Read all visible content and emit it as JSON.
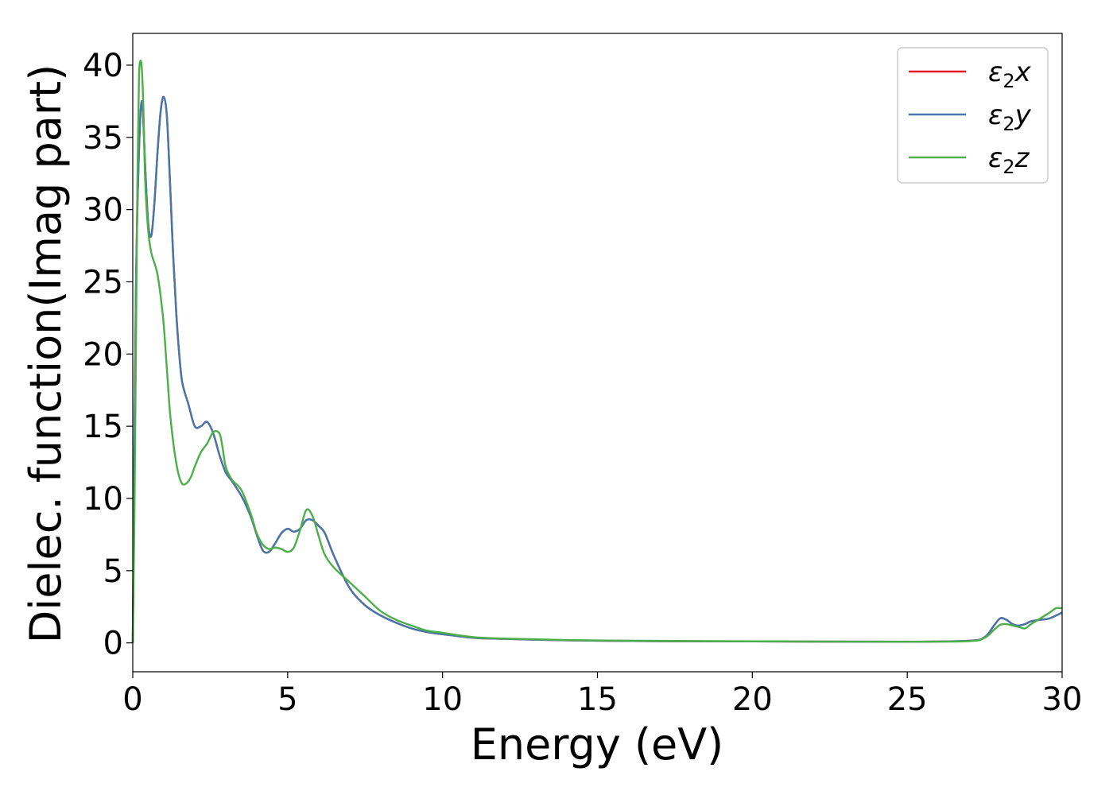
{
  "chart_data": {
    "type": "line",
    "title": "",
    "xlabel": "Energy (eV)",
    "ylabel": "Dielec. function(Imag part)",
    "xlim": [
      0,
      30
    ],
    "ylim": [
      -2,
      42.2
    ],
    "xticks": [
      0,
      5,
      10,
      15,
      20,
      25,
      30
    ],
    "yticks": [
      0,
      5,
      10,
      15,
      20,
      25,
      30,
      35,
      40
    ],
    "grid": false,
    "legend_position": "top-right",
    "series": [
      {
        "name": "ε₂x",
        "legend_main": "ε",
        "legend_sub": "2",
        "legend_suffix": "x",
        "color": "#e41a1c",
        "x": [
          0,
          0.1,
          0.2,
          0.3,
          0.4,
          0.5,
          0.6,
          0.7,
          0.8,
          0.9,
          1.0,
          1.1,
          1.2,
          1.3,
          1.4,
          1.5,
          1.6,
          1.8,
          2.0,
          2.2,
          2.4,
          2.6,
          2.8,
          3.0,
          3.2,
          3.5,
          3.8,
          4.0,
          4.2,
          4.4,
          4.6,
          4.8,
          5.0,
          5.2,
          5.4,
          5.6,
          5.8,
          6.0,
          6.2,
          6.5,
          7.0,
          7.5,
          8.0,
          8.5,
          9.0,
          9.5,
          10.0,
          11.0,
          12.0,
          13.0,
          14.0,
          15.0,
          17.0,
          20.0,
          25.0,
          27.0,
          27.5,
          27.8,
          28.0,
          28.2,
          28.4,
          28.6,
          28.8,
          29.0,
          29.3,
          29.6,
          30.0
        ],
        "y": [
          0,
          24.0,
          34.0,
          37.5,
          33.0,
          29.0,
          28.2,
          30.5,
          34.0,
          36.8,
          37.8,
          36.5,
          32.0,
          27.0,
          23.0,
          20.0,
          18.0,
          16.5,
          15.0,
          15.0,
          15.3,
          14.5,
          13.0,
          11.8,
          11.2,
          10.2,
          8.8,
          7.5,
          6.4,
          6.3,
          6.9,
          7.6,
          7.9,
          7.7,
          7.9,
          8.5,
          8.5,
          8.1,
          7.6,
          6.0,
          3.8,
          2.6,
          1.9,
          1.4,
          1.0,
          0.75,
          0.6,
          0.35,
          0.28,
          0.22,
          0.18,
          0.15,
          0.12,
          0.1,
          0.08,
          0.15,
          0.4,
          1.2,
          1.7,
          1.6,
          1.3,
          1.2,
          1.3,
          1.5,
          1.6,
          1.7,
          2.1
        ]
      },
      {
        "name": "ε₂y",
        "legend_main": "ε",
        "legend_sub": "2",
        "legend_suffix": "y",
        "color": "#4477aa",
        "x": [
          0,
          0.1,
          0.2,
          0.3,
          0.4,
          0.5,
          0.6,
          0.7,
          0.8,
          0.9,
          1.0,
          1.1,
          1.2,
          1.3,
          1.4,
          1.5,
          1.6,
          1.8,
          2.0,
          2.2,
          2.4,
          2.6,
          2.8,
          3.0,
          3.2,
          3.5,
          3.8,
          4.0,
          4.2,
          4.4,
          4.6,
          4.8,
          5.0,
          5.2,
          5.4,
          5.6,
          5.8,
          6.0,
          6.2,
          6.5,
          7.0,
          7.5,
          8.0,
          8.5,
          9.0,
          9.5,
          10.0,
          11.0,
          12.0,
          13.0,
          14.0,
          15.0,
          17.0,
          20.0,
          25.0,
          27.0,
          27.5,
          27.8,
          28.0,
          28.2,
          28.4,
          28.6,
          28.8,
          29.0,
          29.3,
          29.6,
          30.0
        ],
        "y": [
          0,
          24.0,
          34.0,
          37.5,
          33.0,
          29.0,
          28.2,
          30.5,
          34.0,
          36.8,
          37.8,
          36.5,
          32.0,
          27.0,
          23.0,
          20.0,
          18.0,
          16.5,
          15.0,
          15.0,
          15.3,
          14.5,
          13.0,
          11.8,
          11.2,
          10.2,
          8.8,
          7.5,
          6.4,
          6.3,
          6.9,
          7.6,
          7.9,
          7.7,
          7.9,
          8.5,
          8.5,
          8.1,
          7.6,
          6.0,
          3.8,
          2.6,
          1.9,
          1.4,
          1.0,
          0.75,
          0.6,
          0.35,
          0.28,
          0.22,
          0.18,
          0.15,
          0.12,
          0.1,
          0.08,
          0.15,
          0.4,
          1.2,
          1.7,
          1.6,
          1.3,
          1.2,
          1.3,
          1.5,
          1.6,
          1.7,
          2.1
        ]
      },
      {
        "name": "ε₂z",
        "legend_main": "ε",
        "legend_sub": "2",
        "legend_suffix": "z",
        "color": "#4daf4a",
        "x": [
          0,
          0.05,
          0.1,
          0.15,
          0.2,
          0.25,
          0.3,
          0.35,
          0.4,
          0.5,
          0.6,
          0.7,
          0.8,
          0.9,
          1.0,
          1.1,
          1.2,
          1.3,
          1.4,
          1.5,
          1.6,
          1.7,
          1.8,
          1.9,
          2.0,
          2.2,
          2.4,
          2.6,
          2.8,
          2.9,
          3.0,
          3.2,
          3.5,
          3.8,
          4.0,
          4.2,
          4.4,
          4.6,
          4.8,
          5.0,
          5.2,
          5.4,
          5.6,
          5.8,
          6.0,
          6.2,
          6.5,
          7.0,
          7.5,
          8.0,
          8.5,
          9.0,
          9.5,
          10.0,
          11.0,
          12.0,
          13.0,
          14.0,
          15.0,
          17.0,
          20.0,
          25.0,
          27.0,
          27.5,
          27.8,
          28.0,
          28.2,
          28.4,
          28.6,
          28.8,
          29.0,
          29.3,
          29.6,
          29.8,
          30.0
        ],
        "y": [
          0,
          8,
          20,
          32,
          39.0,
          40.3,
          39.5,
          36.5,
          32.0,
          28.5,
          27.0,
          26.3,
          25.5,
          24.0,
          22.0,
          19.0,
          16.0,
          14.0,
          12.5,
          11.5,
          11.0,
          11.0,
          11.2,
          11.6,
          12.2,
          13.2,
          13.8,
          14.6,
          14.5,
          13.5,
          12.2,
          11.3,
          10.6,
          9.0,
          7.6,
          6.8,
          6.5,
          6.6,
          6.5,
          6.3,
          6.6,
          7.8,
          9.2,
          8.8,
          7.4,
          6.1,
          5.2,
          4.2,
          3.2,
          2.2,
          1.6,
          1.2,
          0.85,
          0.7,
          0.4,
          0.3,
          0.25,
          0.2,
          0.17,
          0.14,
          0.11,
          0.09,
          0.12,
          0.35,
          0.9,
          1.25,
          1.3,
          1.2,
          1.1,
          1.0,
          1.3,
          1.7,
          2.1,
          2.4,
          2.4
        ]
      }
    ]
  }
}
